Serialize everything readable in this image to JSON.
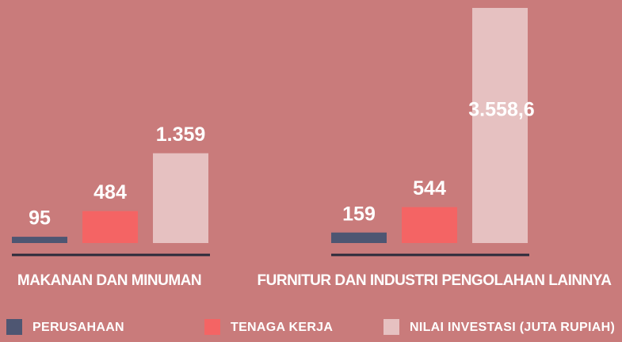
{
  "chart_data": {
    "type": "bar",
    "categories": [
      "MAKANAN DAN MINUMAN",
      "FURNITUR DAN INDUSTRI PENGOLAHAN LAINNYA"
    ],
    "series": [
      {
        "name": "PERUSAHAAN",
        "color": "#4e5672",
        "values": [
          95,
          159
        ],
        "value_labels": [
          "95",
          "159"
        ]
      },
      {
        "name": "TENAGA KERJA",
        "color": "#f46464",
        "values": [
          484,
          544
        ],
        "value_labels": [
          "484",
          "544"
        ]
      },
      {
        "name": "NILAI INVESTASI (JUTA RUPIAH)",
        "color": "#e6c1c1",
        "values": [
          1359,
          3558.6
        ],
        "value_labels": [
          "1.359",
          "3.558,6"
        ]
      }
    ],
    "legend": "bottom"
  }
}
